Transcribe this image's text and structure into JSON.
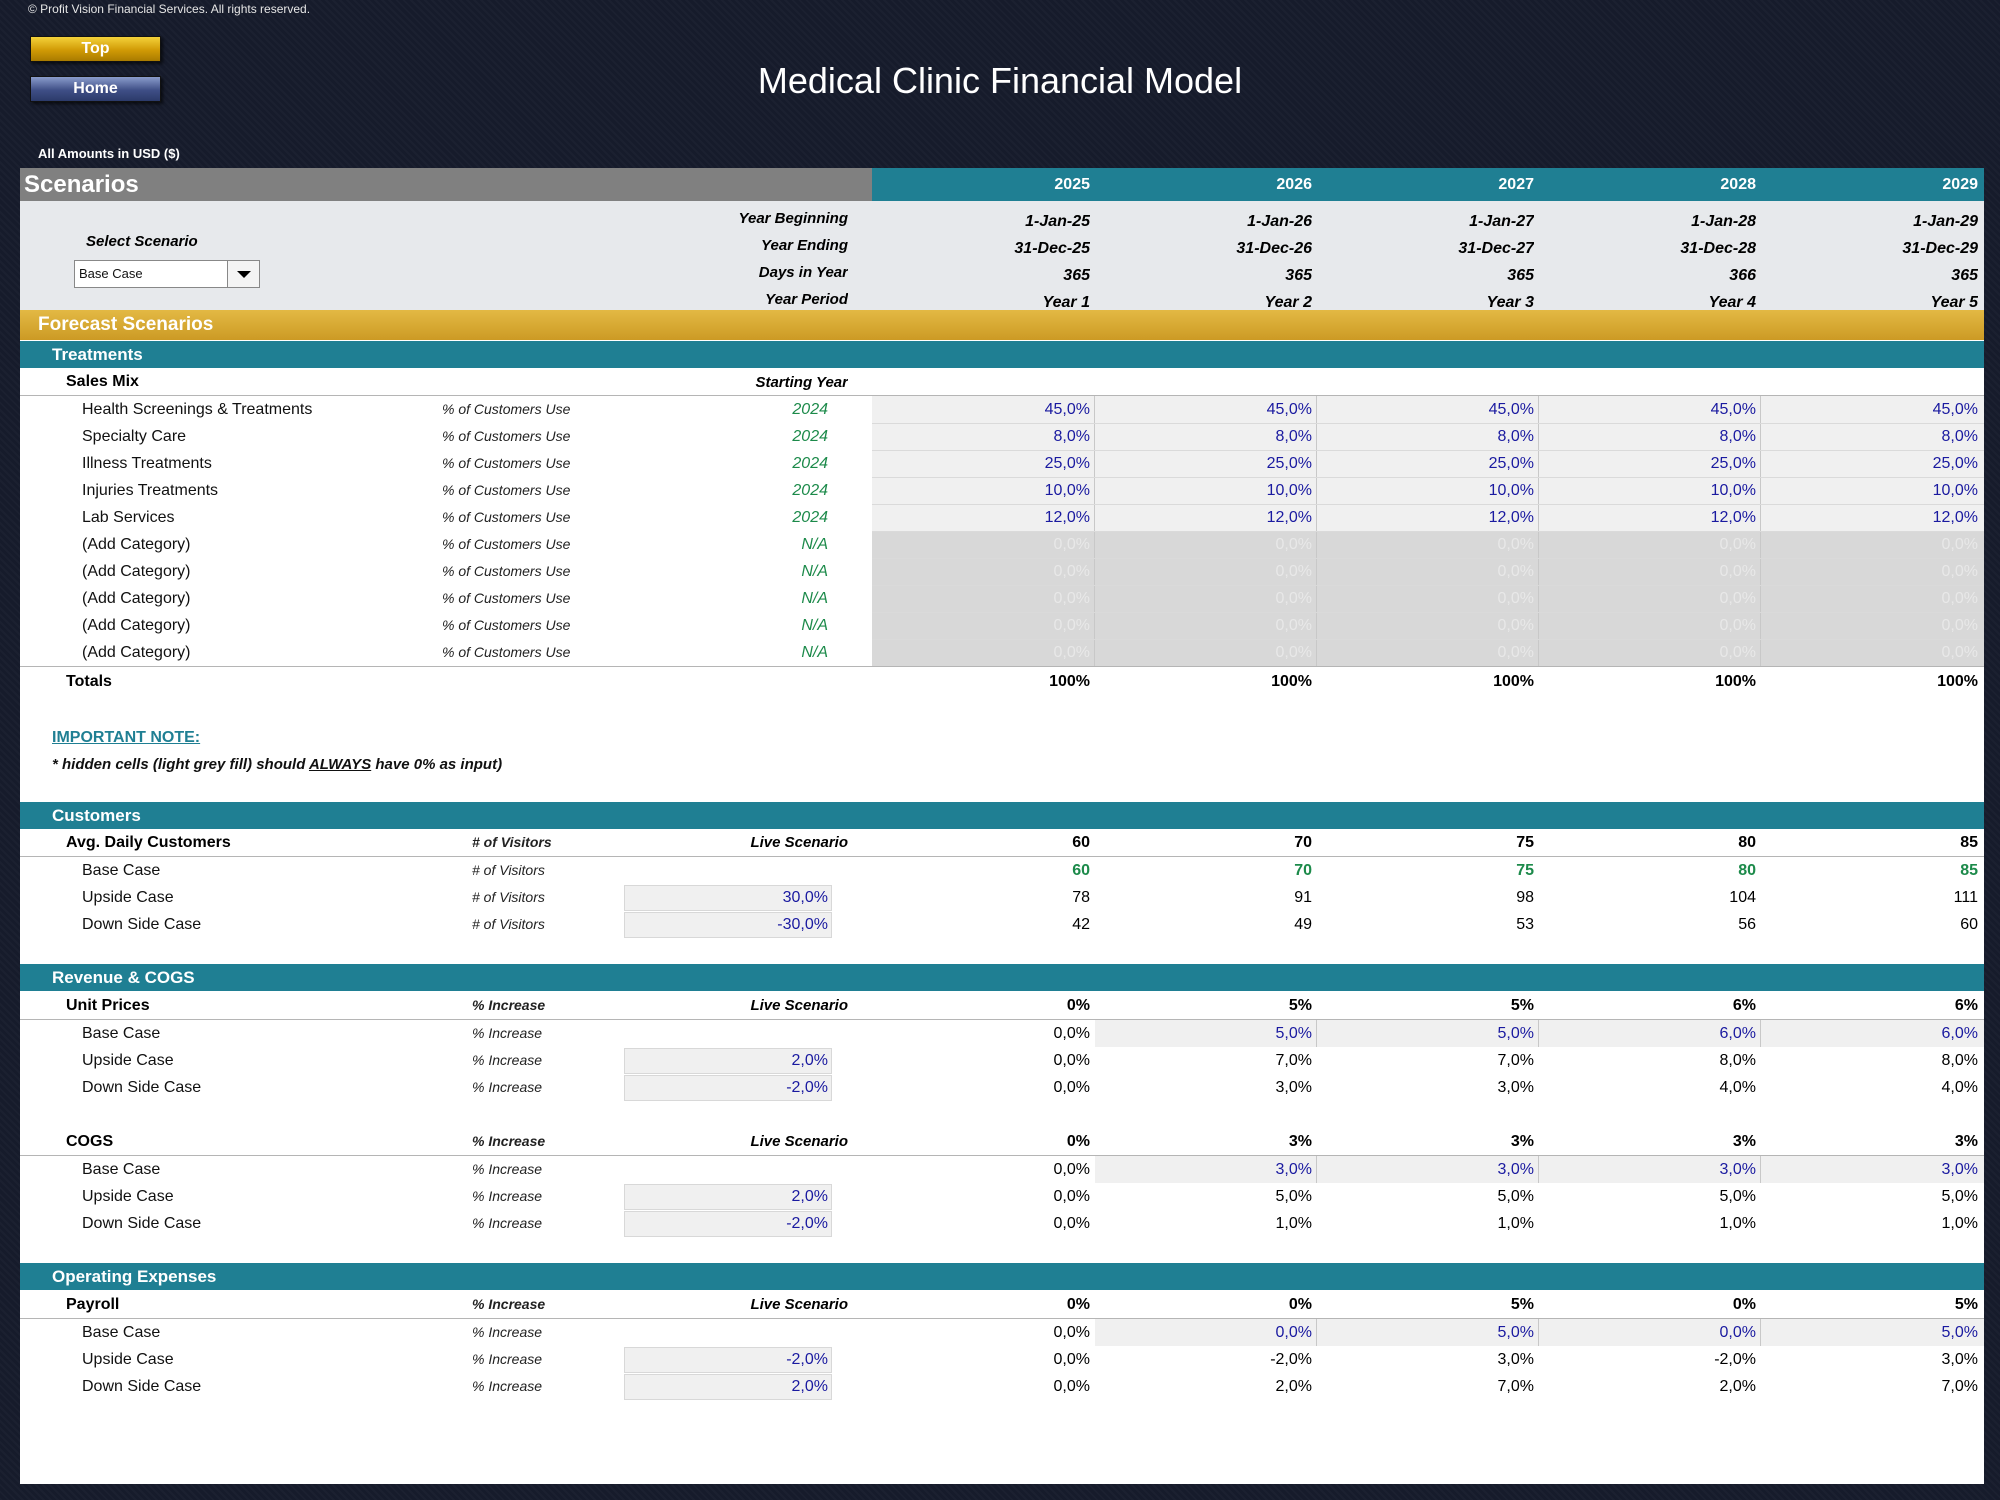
{
  "copyright": "© Profit Vision Financial Services. All rights reserved.",
  "nav": {
    "top": "Top",
    "home": "Home"
  },
  "title": "Medical Clinic Financial Model",
  "amounts_note": "All Amounts in  USD ($)",
  "scenarios": {
    "header": "Scenarios",
    "years": [
      "2025",
      "2026",
      "2027",
      "2028",
      "2029"
    ],
    "select_label": "Select Scenario",
    "selected": "Base Case",
    "info": [
      {
        "label": "Year Beginning",
        "values": [
          "1-Jan-25",
          "1-Jan-26",
          "1-Jan-27",
          "1-Jan-28",
          "1-Jan-29"
        ]
      },
      {
        "label": "Year Ending",
        "values": [
          "31-Dec-25",
          "31-Dec-26",
          "31-Dec-27",
          "31-Dec-28",
          "31-Dec-29"
        ]
      },
      {
        "label": "Days in Year",
        "values": [
          "365",
          "365",
          "365",
          "366",
          "365"
        ]
      },
      {
        "label": "Year Period",
        "values": [
          "Year 1",
          "Year 2",
          "Year 3",
          "Year 4",
          "Year 5"
        ]
      }
    ]
  },
  "forecast_title": "Forecast Scenarios",
  "treatments": {
    "title": "Treatments",
    "sub_label": "Sales Mix",
    "sub_col": "Starting Year",
    "rows": [
      {
        "name": "Health Screenings & Treatments",
        "unit": "% of Customers Use",
        "start": "2024",
        "values": [
          "45,0%",
          "45,0%",
          "45,0%",
          "45,0%",
          "45,0%"
        ]
      },
      {
        "name": "Specialty Care",
        "unit": "% of Customers Use",
        "start": "2024",
        "values": [
          "8,0%",
          "8,0%",
          "8,0%",
          "8,0%",
          "8,0%"
        ]
      },
      {
        "name": "Illness Treatments",
        "unit": "% of Customers Use",
        "start": "2024",
        "values": [
          "25,0%",
          "25,0%",
          "25,0%",
          "25,0%",
          "25,0%"
        ]
      },
      {
        "name": "Injuries Treatments",
        "unit": "% of Customers Use",
        "start": "2024",
        "values": [
          "10,0%",
          "10,0%",
          "10,0%",
          "10,0%",
          "10,0%"
        ]
      },
      {
        "name": "Lab Services",
        "unit": "% of Customers Use",
        "start": "2024",
        "values": [
          "12,0%",
          "12,0%",
          "12,0%",
          "12,0%",
          "12,0%"
        ]
      },
      {
        "name": "(Add Category)",
        "unit": "% of Customers Use",
        "start": "N/A",
        "values": [
          "0,0%",
          "0,0%",
          "0,0%",
          "0,0%",
          "0,0%"
        ]
      },
      {
        "name": "(Add Category)",
        "unit": "% of Customers Use",
        "start": "N/A",
        "values": [
          "0,0%",
          "0,0%",
          "0,0%",
          "0,0%",
          "0,0%"
        ]
      },
      {
        "name": "(Add Category)",
        "unit": "% of Customers Use",
        "start": "N/A",
        "values": [
          "0,0%",
          "0,0%",
          "0,0%",
          "0,0%",
          "0,0%"
        ]
      },
      {
        "name": "(Add Category)",
        "unit": "% of Customers Use",
        "start": "N/A",
        "values": [
          "0,0%",
          "0,0%",
          "0,0%",
          "0,0%",
          "0,0%"
        ]
      },
      {
        "name": "(Add Category)",
        "unit": "% of Customers Use",
        "start": "N/A",
        "values": [
          "0,0%",
          "0,0%",
          "0,0%",
          "0,0%",
          "0,0%"
        ]
      }
    ],
    "totals_label": "Totals",
    "totals": [
      "100%",
      "100%",
      "100%",
      "100%",
      "100%"
    ]
  },
  "note": {
    "title": "IMPORTANT NOTE:",
    "pre": "* hidden cells (light grey fill) should ",
    "emph": "ALWAYS",
    "post": " have 0% as input)"
  },
  "customers": {
    "title": "Customers",
    "sub_label": "Avg. Daily Customers",
    "sub_unit": "# of Visitors",
    "sub_col": "Live Scenario",
    "live": [
      "60",
      "70",
      "75",
      "80",
      "85"
    ],
    "rows": [
      {
        "name": "Base Case",
        "unit": "# of Visitors",
        "input": "",
        "values": [
          "60",
          "70",
          "75",
          "80",
          "85"
        ]
      },
      {
        "name": "Upside Case",
        "unit": "# of Visitors",
        "input": "30,0%",
        "values": [
          "78",
          "91",
          "98",
          "104",
          "111"
        ]
      },
      {
        "name": "Down Side Case",
        "unit": "# of Visitors",
        "input": "-30,0%",
        "values": [
          "42",
          "49",
          "53",
          "56",
          "60"
        ]
      }
    ]
  },
  "revenue": {
    "title": "Revenue & COGS",
    "unit_prices": {
      "label": "Unit Prices",
      "unit": "% Increase",
      "col": "Live Scenario",
      "live": [
        "0%",
        "5%",
        "5%",
        "6%",
        "6%"
      ],
      "rows": [
        {
          "name": "Base Case",
          "unit": "% Increase",
          "input": "",
          "values": [
            "0,0%",
            "5,0%",
            "5,0%",
            "6,0%",
            "6,0%"
          ]
        },
        {
          "name": "Upside Case",
          "unit": "% Increase",
          "input": "2,0%",
          "values": [
            "0,0%",
            "7,0%",
            "7,0%",
            "8,0%",
            "8,0%"
          ]
        },
        {
          "name": "Down Side Case",
          "unit": "% Increase",
          "input": "-2,0%",
          "values": [
            "0,0%",
            "3,0%",
            "3,0%",
            "4,0%",
            "4,0%"
          ]
        }
      ]
    },
    "cogs": {
      "label": "COGS",
      "unit": "% Increase",
      "col": "Live Scenario",
      "live": [
        "0%",
        "3%",
        "3%",
        "3%",
        "3%"
      ],
      "rows": [
        {
          "name": "Base Case",
          "unit": "% Increase",
          "input": "",
          "values": [
            "0,0%",
            "3,0%",
            "3,0%",
            "3,0%",
            "3,0%"
          ]
        },
        {
          "name": "Upside Case",
          "unit": "% Increase",
          "input": "2,0%",
          "values": [
            "0,0%",
            "5,0%",
            "5,0%",
            "5,0%",
            "5,0%"
          ]
        },
        {
          "name": "Down Side Case",
          "unit": "% Increase",
          "input": "-2,0%",
          "values": [
            "0,0%",
            "1,0%",
            "1,0%",
            "1,0%",
            "1,0%"
          ]
        }
      ]
    }
  },
  "opex": {
    "title": "Operating Expenses",
    "payroll": {
      "label": "Payroll",
      "unit": "% Increase",
      "col": "Live Scenario",
      "live": [
        "0%",
        "0%",
        "5%",
        "0%",
        "5%"
      ],
      "rows": [
        {
          "name": "Base Case",
          "unit": "% Increase",
          "input": "",
          "values": [
            "0,0%",
            "0,0%",
            "5,0%",
            "0,0%",
            "5,0%"
          ]
        },
        {
          "name": "Upside Case",
          "unit": "% Increase",
          "input": "-2,0%",
          "values": [
            "0,0%",
            "-2,0%",
            "3,0%",
            "-2,0%",
            "3,0%"
          ]
        },
        {
          "name": "Down Side Case",
          "unit": "% Increase",
          "input": "2,0%",
          "values": [
            "0,0%",
            "2,0%",
            "7,0%",
            "2,0%",
            "7,0%"
          ]
        }
      ]
    }
  }
}
